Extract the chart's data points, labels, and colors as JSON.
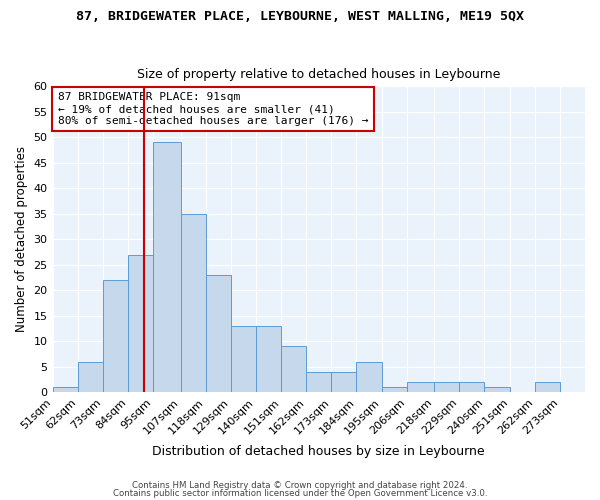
{
  "title": "87, BRIDGEWATER PLACE, LEYBOURNE, WEST MALLING, ME19 5QX",
  "subtitle": "Size of property relative to detached houses in Leybourne",
  "xlabel": "Distribution of detached houses by size in Leybourne",
  "ylabel": "Number of detached properties",
  "bin_labels": [
    "51sqm",
    "62sqm",
    "73sqm",
    "84sqm",
    "95sqm",
    "107sqm",
    "118sqm",
    "129sqm",
    "140sqm",
    "151sqm",
    "162sqm",
    "173sqm",
    "184sqm",
    "195sqm",
    "206sqm",
    "218sqm",
    "229sqm",
    "240sqm",
    "251sqm",
    "262sqm",
    "273sqm"
  ],
  "bar_heights": [
    1,
    6,
    22,
    27,
    49,
    35,
    23,
    13,
    13,
    9,
    4,
    4,
    6,
    1,
    2,
    2,
    2,
    1,
    0,
    2,
    0
  ],
  "bar_color": "#c5d8ec",
  "bar_edge_color": "#5b9bd5",
  "vline_x": 91,
  "bin_edges": [
    51,
    62,
    73,
    84,
    95,
    107,
    118,
    129,
    140,
    151,
    162,
    173,
    184,
    195,
    206,
    218,
    229,
    240,
    251,
    262,
    273,
    284
  ],
  "annotation_text": "87 BRIDGEWATER PLACE: 91sqm\n← 19% of detached houses are smaller (41)\n80% of semi-detached houses are larger (176) →",
  "annotation_box_color": "#ffffff",
  "annotation_box_edge": "#cc0000",
  "vline_color": "#cc0000",
  "ylim": [
    0,
    60
  ],
  "yticks": [
    0,
    5,
    10,
    15,
    20,
    25,
    30,
    35,
    40,
    45,
    50,
    55,
    60
  ],
  "footer1": "Contains HM Land Registry data © Crown copyright and database right 2024.",
  "footer2": "Contains public sector information licensed under the Open Government Licence v3.0.",
  "bg_color": "#eaf3fb",
  "grid_color": "#ffffff",
  "fig_bg_color": "#ffffff"
}
